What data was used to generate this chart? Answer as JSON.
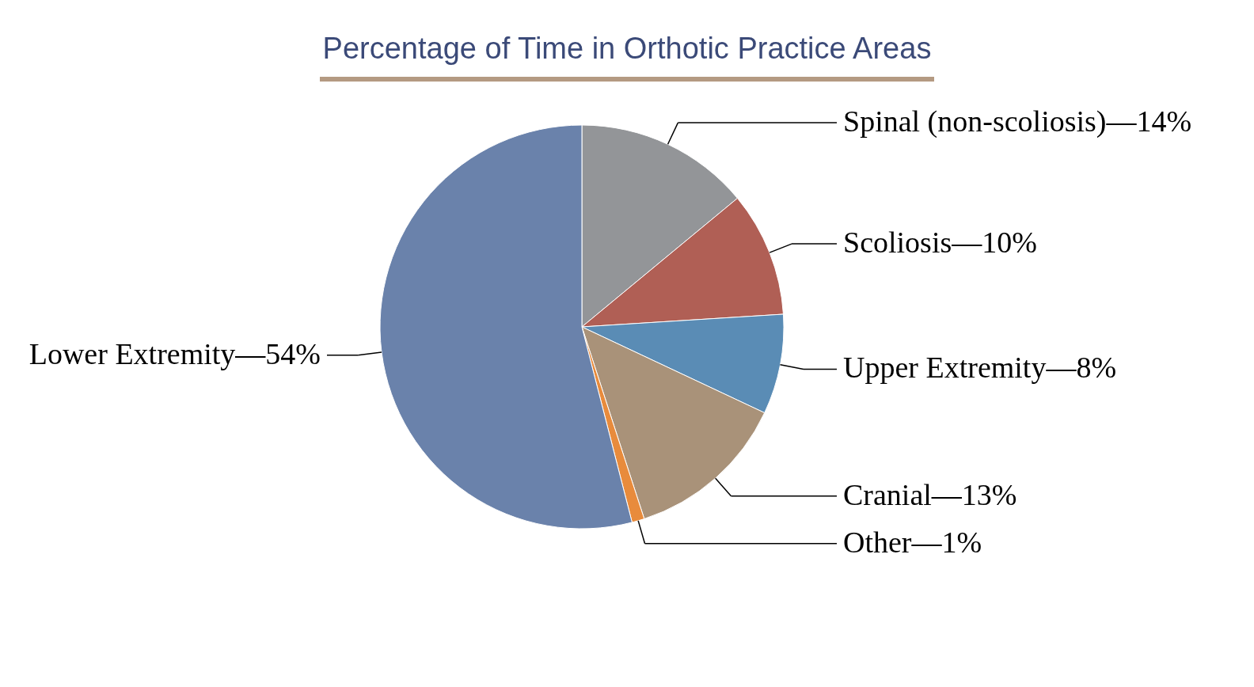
{
  "chart_data": {
    "type": "pie",
    "title": "Percentage of Time in Orthotic Practice Areas",
    "categories": [
      "Spinal (non-scoliosis)",
      "Scoliosis",
      "Upper Extremity",
      "Cranial",
      "Other",
      "Lower Extremity"
    ],
    "values": [
      14,
      10,
      8,
      13,
      1,
      54
    ],
    "colors": [
      "#939598",
      "#b05f55",
      "#5a8cb5",
      "#a99279",
      "#e88b3c",
      "#6a82ab"
    ],
    "value_labels": [
      "—14%",
      "—10%",
      "—8%",
      "—13%",
      "—1%",
      "—54%"
    ]
  }
}
